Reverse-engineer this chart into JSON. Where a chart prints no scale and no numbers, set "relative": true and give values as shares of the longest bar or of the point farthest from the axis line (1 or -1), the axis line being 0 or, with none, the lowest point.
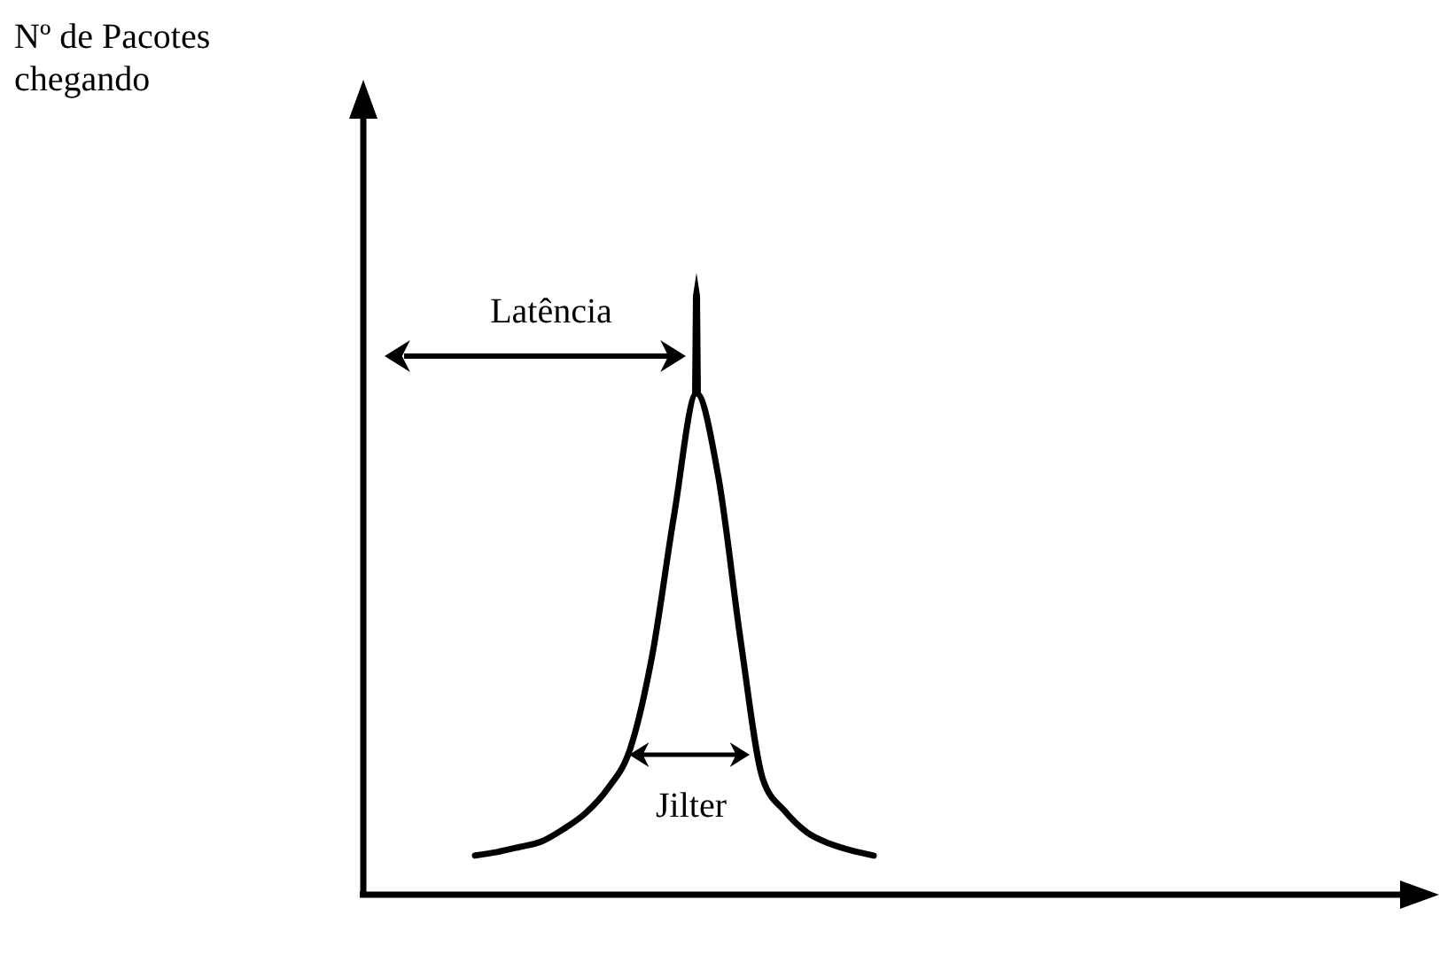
{
  "chart_data": {
    "type": "line",
    "relative": true,
    "categories": [
      null,
      null,
      null,
      null,
      null,
      null,
      null,
      null,
      null,
      null,
      null,
      null,
      null,
      null,
      null,
      null,
      null,
      null,
      null
    ],
    "series": [
      {
        "color": "#000000",
        "values": [
          0.078,
          0.085,
          0.095,
          0.106,
          0.131,
          0.163,
          0.212,
          0.29,
          0.477,
          0.76,
          1,
          0.83,
          0.505,
          0.23,
          0.166,
          0.124,
          0.102,
          0.088,
          0.078
        ]
      }
    ],
    "annotations": [
      "Nº de Pacotes chegando",
      "Latência",
      "Jilter"
    ]
  }
}
